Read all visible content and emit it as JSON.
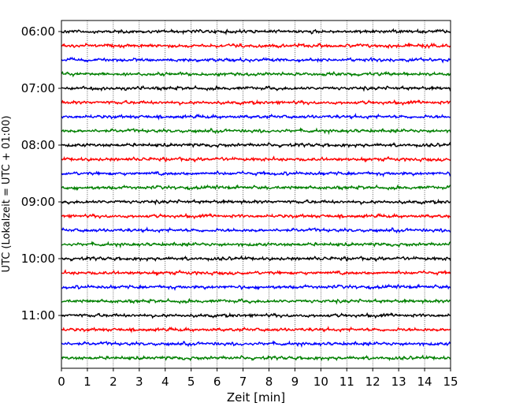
{
  "chart_data": {
    "type": "line",
    "subtype": "helicorder",
    "xlabel": "Zeit  [min]",
    "ylabel": "UTC (Lokalzeit = UTC + 01:00)",
    "xlim": [
      0,
      15
    ],
    "x_ticks": [
      "0",
      "1",
      "2",
      "3",
      "4",
      "5",
      "6",
      "7",
      "8",
      "9",
      "10",
      "11",
      "12",
      "13",
      "14",
      "15"
    ],
    "y_tick_labels": [
      "06:00",
      "07:00",
      "08:00",
      "09:00",
      "10:00",
      "11:00"
    ],
    "trace_start_times": [
      "06:00",
      "06:15",
      "06:30",
      "06:45",
      "07:00",
      "07:15",
      "07:30",
      "07:45",
      "08:00",
      "08:15",
      "08:30",
      "08:45",
      "09:00",
      "09:15",
      "09:30",
      "09:45",
      "10:00",
      "10:15",
      "10:30",
      "10:45",
      "11:00",
      "11:15",
      "11:30",
      "11:45"
    ],
    "minutes_per_trace": 15,
    "trace_colors": [
      "#000000",
      "#ff0000",
      "#0000ff",
      "#008000"
    ],
    "grid": "vertical dotted at each minute"
  }
}
